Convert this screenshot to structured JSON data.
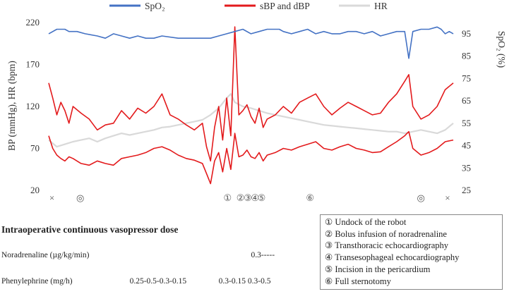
{
  "chart_data": {
    "type": "line",
    "legend": [
      {
        "name": "SpO₂",
        "color": "#4472C4"
      },
      {
        "name": "sBP and dBP",
        "color": "#E31A1C"
      },
      {
        "name": "HR",
        "color": "#D9D9D9"
      }
    ],
    "legend_position": "top",
    "ylabel_left": "BP (mmHg), HR (bpm)",
    "ylabel_right": "SpO₂ (%)",
    "yticks_left": [
      "220",
      "170",
      "120",
      "70",
      "20"
    ],
    "ylim_left": [
      20,
      220
    ],
    "yticks_right": [
      "95",
      "85",
      "75",
      "65",
      "55",
      "45",
      "35",
      "25"
    ],
    "ylim_right": [
      25,
      100
    ],
    "x_range": [
      0,
      100
    ],
    "series": [
      {
        "name": "SpO₂",
        "axis": "right",
        "color": "#4472C4",
        "x": [
          0,
          2,
          4,
          5,
          7,
          9,
          12,
          14,
          16,
          18,
          20,
          22,
          24,
          26,
          28,
          32,
          35,
          38,
          40,
          42,
          44,
          46,
          48,
          50,
          52,
          54,
          56,
          57,
          58,
          60,
          62,
          64,
          66,
          68,
          70,
          72,
          74,
          76,
          78,
          80,
          82,
          84,
          86,
          88,
          89,
          90,
          92,
          94,
          96,
          97,
          98,
          99,
          100
        ],
        "y": [
          95,
          97,
          97,
          96,
          96,
          95,
          94,
          93,
          95,
          94,
          93,
          94,
          93,
          93,
          94,
          93,
          93,
          93,
          93,
          94,
          95,
          96,
          97,
          95,
          96,
          97,
          97,
          97,
          96,
          95,
          96,
          97,
          95,
          96,
          95,
          95,
          96,
          96,
          95,
          96,
          94,
          95,
          96,
          96,
          84,
          96,
          97,
          97,
          98,
          97,
          95,
          96,
          95
        ]
      },
      {
        "name": "sBP",
        "axis": "left",
        "color": "#E31A1C",
        "x": [
          0,
          1,
          2,
          3,
          4,
          5,
          6,
          8,
          10,
          12,
          14,
          16,
          18,
          20,
          22,
          24,
          26,
          28,
          30,
          32,
          34,
          36,
          38,
          39,
          40,
          41,
          42,
          43,
          44,
          45,
          46,
          47,
          48,
          49,
          50,
          51,
          52,
          53,
          54,
          56,
          58,
          60,
          62,
          64,
          66,
          68,
          70,
          72,
          74,
          76,
          78,
          80,
          82,
          84,
          86,
          88,
          89,
          90,
          92,
          94,
          96,
          98,
          100
        ],
        "y": [
          148,
          130,
          110,
          125,
          115,
          100,
          120,
          112,
          105,
          92,
          98,
          100,
          115,
          105,
          118,
          112,
          120,
          135,
          110,
          105,
          98,
          92,
          100,
          72,
          55,
          95,
          120,
          80,
          130,
          85,
          215,
          110,
          115,
          122,
          108,
          100,
          118,
          95,
          105,
          110,
          120,
          112,
          125,
          130,
          135,
          120,
          110,
          118,
          125,
          120,
          115,
          110,
          112,
          125,
          135,
          150,
          158,
          120,
          105,
          110,
          120,
          140,
          148
        ]
      },
      {
        "name": "dBP",
        "axis": "left",
        "color": "#E31A1C",
        "x": [
          0,
          1,
          2,
          3,
          4,
          5,
          6,
          8,
          10,
          12,
          14,
          16,
          18,
          20,
          22,
          24,
          26,
          28,
          30,
          32,
          34,
          36,
          38,
          39,
          40,
          41,
          42,
          43,
          44,
          45,
          46,
          47,
          48,
          49,
          50,
          51,
          52,
          53,
          54,
          56,
          58,
          60,
          62,
          64,
          66,
          68,
          70,
          72,
          74,
          76,
          78,
          80,
          82,
          84,
          86,
          88,
          89,
          90,
          92,
          94,
          96,
          98,
          100
        ],
        "y": [
          85,
          70,
          62,
          58,
          55,
          60,
          58,
          52,
          50,
          55,
          52,
          50,
          58,
          60,
          62,
          65,
          70,
          72,
          68,
          62,
          58,
          56,
          52,
          40,
          28,
          55,
          65,
          42,
          70,
          45,
          88,
          60,
          62,
          68,
          60,
          58,
          65,
          55,
          62,
          65,
          70,
          68,
          72,
          75,
          78,
          70,
          68,
          72,
          75,
          70,
          68,
          65,
          66,
          72,
          78,
          85,
          90,
          70,
          62,
          65,
          70,
          78,
          80
        ]
      },
      {
        "name": "HR",
        "axis": "left",
        "color": "#D9D9D9",
        "x": [
          0,
          2,
          4,
          6,
          8,
          10,
          12,
          14,
          16,
          18,
          20,
          22,
          24,
          26,
          28,
          30,
          32,
          34,
          36,
          38,
          40,
          42,
          44,
          45,
          46,
          48,
          50,
          52,
          54,
          56,
          58,
          60,
          62,
          64,
          66,
          68,
          70,
          72,
          74,
          76,
          78,
          80,
          82,
          84,
          86,
          88,
          90,
          92,
          94,
          96,
          98,
          100
        ],
        "y": [
          80,
          72,
          75,
          78,
          80,
          82,
          78,
          82,
          85,
          88,
          86,
          88,
          90,
          92,
          95,
          96,
          98,
          100,
          102,
          104,
          110,
          118,
          130,
          135,
          125,
          120,
          118,
          115,
          112,
          110,
          108,
          106,
          104,
          102,
          100,
          98,
          97,
          96,
          95,
          94,
          93,
          92,
          91,
          90,
          90,
          88,
          90,
          92,
          90,
          88,
          92,
          100
        ]
      }
    ],
    "event_markers": [
      {
        "symbol": "×",
        "x": 0.8
      },
      {
        "symbol": "◎",
        "x": 7.8
      },
      {
        "symbol": "①",
        "x": 44.2
      },
      {
        "symbol": "②",
        "x": 47.4
      },
      {
        "symbol": "③",
        "x": 49.2
      },
      {
        "symbol": "④",
        "x": 51.0
      },
      {
        "symbol": "⑤",
        "x": 52.6
      },
      {
        "symbol": "⑥",
        "x": 64.6
      },
      {
        "symbol": "◎",
        "x": 92.0
      },
      {
        "symbol": "×",
        "x": 98.6
      }
    ]
  },
  "dose_section": {
    "title": "Intraoperative continuous vasopressor  dose",
    "drugs": [
      {
        "name": "Noradrenaline (µg/kg/min)",
        "doses": [
          {
            "text": "0.3-----",
            "x": 50
          }
        ]
      },
      {
        "name": "Phenylephrine (mg/h)",
        "doses": [
          {
            "text": "0.25-0.5-0.3-0.15",
            "x": 20
          },
          {
            "text": "0.3-0.15 0.3-0.5",
            "x": 42
          }
        ]
      }
    ]
  },
  "events": [
    "① Undock of the robot",
    "② Bolus infusion of noradrenaline",
    "③ Transthoracic echocardiography",
    "④ Transesophageal echocardiography",
    "⑤ Incision in the pericardium",
    "⑥ Full sternotomy"
  ]
}
